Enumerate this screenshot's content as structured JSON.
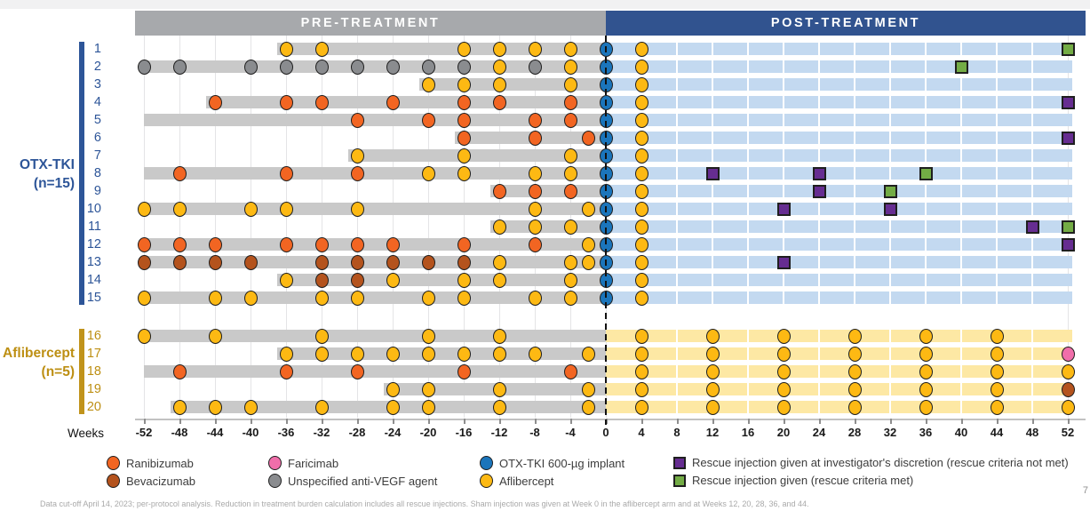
{
  "page_number": "7",
  "footnote": "Data cut-off April 14, 2023; per-protocol analysis. Reduction in treatment burden calculation includes all rescue injections. Sham injection was given at Week 0 in the aflibercept arm and at Weeks 12, 20, 28, 36, and 44.",
  "chart_data": {
    "type": "swimmer_timeline",
    "title_bars": {
      "pre": "PRE-TREATMENT",
      "post": "POST-TREATMENT"
    },
    "axis": {
      "label": "Weeks",
      "min": -52,
      "max": 52,
      "tick_step": 4,
      "ticks": [
        -52,
        -48,
        -44,
        -40,
        -36,
        -32,
        -28,
        -24,
        -20,
        -16,
        -12,
        -8,
        -4,
        0,
        4,
        8,
        12,
        16,
        20,
        24,
        28,
        32,
        36,
        40,
        44,
        48,
        52
      ]
    },
    "groups": [
      {
        "key": "otx",
        "label": "OTX-TKI",
        "n_label": "(n=15)",
        "color": "#2D5598",
        "rows": "1-15"
      },
      {
        "key": "afl",
        "label": "Aflibercept",
        "n_label": "(n=5)",
        "color": "#BD8F13",
        "rows": "16-20"
      }
    ],
    "band_colors": {
      "otx": "#C3D9F0",
      "afl": "#FDE8A4"
    },
    "pre_bar_color": "#C9C9C9",
    "marker_types": {
      "ran": {
        "label": "Ranibizumab",
        "shape": "circle",
        "color": "#F26522"
      },
      "bev": {
        "label": "Bevacizumab",
        "shape": "circle",
        "color": "#B4531D"
      },
      "far": {
        "label": "Faricimab",
        "shape": "circle",
        "color": "#F06EAA"
      },
      "uns": {
        "label": "Unspecified anti-VEGF agent",
        "shape": "circle",
        "color": "#8A8C8F"
      },
      "otx": {
        "label": "OTX-TKI 600-µg implant",
        "shape": "circle",
        "color": "#1B75BB"
      },
      "afl": {
        "label": "Aflibercept",
        "shape": "circle",
        "color": "#FDB913"
      },
      "rnm": {
        "label": "Rescue injection given at investigator's discretion (rescue criteria not met)",
        "shape": "square",
        "color": "#662D91"
      },
      "rm": {
        "label": "Rescue injection given (rescue criteria met)",
        "shape": "square",
        "color": "#73AC45"
      }
    },
    "patients": [
      {
        "id": 1,
        "group": "otx",
        "pre_start": -37,
        "markers": [
          [
            -36,
            "afl"
          ],
          [
            -32,
            "afl"
          ],
          [
            -16,
            "afl"
          ],
          [
            -12,
            "afl"
          ],
          [
            -8,
            "afl"
          ],
          [
            -4,
            "afl"
          ],
          [
            0,
            "otx"
          ],
          [
            4,
            "afl"
          ],
          [
            52,
            "rm"
          ]
        ]
      },
      {
        "id": 2,
        "group": "otx",
        "pre_start": -52,
        "markers": [
          [
            -52,
            "uns"
          ],
          [
            -48,
            "uns"
          ],
          [
            -40,
            "uns"
          ],
          [
            -36,
            "uns"
          ],
          [
            -32,
            "uns"
          ],
          [
            -28,
            "uns"
          ],
          [
            -24,
            "uns"
          ],
          [
            -20,
            "uns"
          ],
          [
            -16,
            "uns"
          ],
          [
            -12,
            "afl"
          ],
          [
            -8,
            "uns"
          ],
          [
            -4,
            "afl"
          ],
          [
            0,
            "otx"
          ],
          [
            4,
            "afl"
          ],
          [
            40,
            "rm"
          ]
        ]
      },
      {
        "id": 3,
        "group": "otx",
        "pre_start": -21,
        "markers": [
          [
            -20,
            "afl"
          ],
          [
            -16,
            "afl"
          ],
          [
            -12,
            "afl"
          ],
          [
            -4,
            "afl"
          ],
          [
            0,
            "otx"
          ],
          [
            4,
            "afl"
          ]
        ]
      },
      {
        "id": 4,
        "group": "otx",
        "pre_start": -45,
        "markers": [
          [
            -44,
            "ran"
          ],
          [
            -36,
            "ran"
          ],
          [
            -32,
            "ran"
          ],
          [
            -24,
            "ran"
          ],
          [
            -16,
            "ran"
          ],
          [
            -12,
            "ran"
          ],
          [
            -4,
            "ran"
          ],
          [
            0,
            "otx"
          ],
          [
            4,
            "afl"
          ],
          [
            52,
            "rnm"
          ]
        ]
      },
      {
        "id": 5,
        "group": "otx",
        "pre_start": -52,
        "markers": [
          [
            -28,
            "ran"
          ],
          [
            -20,
            "ran"
          ],
          [
            -16,
            "ran"
          ],
          [
            -8,
            "ran"
          ],
          [
            -4,
            "ran"
          ],
          [
            0,
            "otx"
          ],
          [
            4,
            "afl"
          ]
        ]
      },
      {
        "id": 6,
        "group": "otx",
        "pre_start": -17,
        "markers": [
          [
            -16,
            "ran"
          ],
          [
            -8,
            "ran"
          ],
          [
            -2,
            "ran"
          ],
          [
            0,
            "otx"
          ],
          [
            4,
            "afl"
          ],
          [
            52,
            "rnm"
          ]
        ]
      },
      {
        "id": 7,
        "group": "otx",
        "pre_start": -29,
        "markers": [
          [
            -28,
            "afl"
          ],
          [
            -16,
            "afl"
          ],
          [
            -4,
            "afl"
          ],
          [
            0,
            "otx"
          ],
          [
            4,
            "afl"
          ]
        ]
      },
      {
        "id": 8,
        "group": "otx",
        "pre_start": -52,
        "markers": [
          [
            -48,
            "ran"
          ],
          [
            -36,
            "ran"
          ],
          [
            -28,
            "ran"
          ],
          [
            -20,
            "afl"
          ],
          [
            -16,
            "afl"
          ],
          [
            -8,
            "afl"
          ],
          [
            -4,
            "afl"
          ],
          [
            0,
            "otx"
          ],
          [
            4,
            "afl"
          ],
          [
            12,
            "rnm"
          ],
          [
            24,
            "rnm"
          ],
          [
            36,
            "rm"
          ]
        ]
      },
      {
        "id": 9,
        "group": "otx",
        "pre_start": -13,
        "markers": [
          [
            -12,
            "ran"
          ],
          [
            -8,
            "ran"
          ],
          [
            -4,
            "ran"
          ],
          [
            0,
            "otx"
          ],
          [
            4,
            "afl"
          ],
          [
            24,
            "rnm"
          ],
          [
            32,
            "rm"
          ]
        ]
      },
      {
        "id": 10,
        "group": "otx",
        "pre_start": -52,
        "markers": [
          [
            -52,
            "afl"
          ],
          [
            -48,
            "afl"
          ],
          [
            -40,
            "afl"
          ],
          [
            -36,
            "afl"
          ],
          [
            -28,
            "afl"
          ],
          [
            -8,
            "afl"
          ],
          [
            -2,
            "afl"
          ],
          [
            0,
            "otx"
          ],
          [
            4,
            "afl"
          ],
          [
            20,
            "rnm"
          ],
          [
            32,
            "rnm"
          ]
        ]
      },
      {
        "id": 11,
        "group": "otx",
        "pre_start": -13,
        "markers": [
          [
            -12,
            "afl"
          ],
          [
            -8,
            "afl"
          ],
          [
            -4,
            "afl"
          ],
          [
            0,
            "otx"
          ],
          [
            4,
            "afl"
          ],
          [
            48,
            "rnm"
          ],
          [
            52,
            "rm"
          ]
        ]
      },
      {
        "id": 12,
        "group": "otx",
        "pre_start": -52,
        "markers": [
          [
            -52,
            "ran"
          ],
          [
            -48,
            "ran"
          ],
          [
            -44,
            "ran"
          ],
          [
            -36,
            "ran"
          ],
          [
            -32,
            "ran"
          ],
          [
            -28,
            "ran"
          ],
          [
            -24,
            "ran"
          ],
          [
            -16,
            "ran"
          ],
          [
            -8,
            "ran"
          ],
          [
            -2,
            "afl"
          ],
          [
            0,
            "otx"
          ],
          [
            4,
            "afl"
          ],
          [
            52,
            "rnm"
          ]
        ]
      },
      {
        "id": 13,
        "group": "otx",
        "pre_start": -52,
        "markers": [
          [
            -52,
            "bev"
          ],
          [
            -48,
            "bev"
          ],
          [
            -44,
            "bev"
          ],
          [
            -40,
            "bev"
          ],
          [
            -32,
            "bev"
          ],
          [
            -28,
            "bev"
          ],
          [
            -24,
            "bev"
          ],
          [
            -20,
            "bev"
          ],
          [
            -16,
            "bev"
          ],
          [
            -12,
            "afl"
          ],
          [
            -4,
            "afl"
          ],
          [
            -2,
            "afl"
          ],
          [
            0,
            "otx"
          ],
          [
            4,
            "afl"
          ],
          [
            20,
            "rnm"
          ]
        ]
      },
      {
        "id": 14,
        "group": "otx",
        "pre_start": -37,
        "markers": [
          [
            -36,
            "afl"
          ],
          [
            -32,
            "bev"
          ],
          [
            -28,
            "bev"
          ],
          [
            -24,
            "afl"
          ],
          [
            -16,
            "afl"
          ],
          [
            -12,
            "afl"
          ],
          [
            -4,
            "afl"
          ],
          [
            0,
            "otx"
          ],
          [
            4,
            "afl"
          ]
        ]
      },
      {
        "id": 15,
        "group": "otx",
        "pre_start": -52,
        "markers": [
          [
            -52,
            "afl"
          ],
          [
            -44,
            "afl"
          ],
          [
            -40,
            "afl"
          ],
          [
            -32,
            "afl"
          ],
          [
            -28,
            "afl"
          ],
          [
            -20,
            "afl"
          ],
          [
            -16,
            "afl"
          ],
          [
            -8,
            "afl"
          ],
          [
            -4,
            "afl"
          ],
          [
            0,
            "otx"
          ],
          [
            4,
            "afl"
          ]
        ]
      },
      {
        "id": 16,
        "group": "afl",
        "pre_start": -52,
        "markers": [
          [
            -52,
            "afl"
          ],
          [
            -44,
            "afl"
          ],
          [
            -32,
            "afl"
          ],
          [
            -20,
            "afl"
          ],
          [
            -12,
            "afl"
          ],
          [
            4,
            "afl"
          ],
          [
            12,
            "afl"
          ],
          [
            20,
            "afl"
          ],
          [
            28,
            "afl"
          ],
          [
            36,
            "afl"
          ],
          [
            44,
            "afl"
          ]
        ]
      },
      {
        "id": 17,
        "group": "afl",
        "pre_start": -37,
        "markers": [
          [
            -36,
            "afl"
          ],
          [
            -32,
            "afl"
          ],
          [
            -28,
            "afl"
          ],
          [
            -24,
            "afl"
          ],
          [
            -20,
            "afl"
          ],
          [
            -16,
            "afl"
          ],
          [
            -12,
            "afl"
          ],
          [
            -8,
            "afl"
          ],
          [
            -2,
            "afl"
          ],
          [
            4,
            "afl"
          ],
          [
            12,
            "afl"
          ],
          [
            20,
            "afl"
          ],
          [
            28,
            "afl"
          ],
          [
            36,
            "afl"
          ],
          [
            44,
            "afl"
          ],
          [
            52,
            "far"
          ]
        ]
      },
      {
        "id": 18,
        "group": "afl",
        "pre_start": -52,
        "markers": [
          [
            -48,
            "ran"
          ],
          [
            -36,
            "ran"
          ],
          [
            -28,
            "ran"
          ],
          [
            -16,
            "ran"
          ],
          [
            -4,
            "ran"
          ],
          [
            4,
            "afl"
          ],
          [
            12,
            "afl"
          ],
          [
            20,
            "afl"
          ],
          [
            28,
            "afl"
          ],
          [
            36,
            "afl"
          ],
          [
            44,
            "afl"
          ],
          [
            52,
            "afl"
          ]
        ]
      },
      {
        "id": 19,
        "group": "afl",
        "pre_start": -25,
        "markers": [
          [
            -24,
            "afl"
          ],
          [
            -20,
            "afl"
          ],
          [
            -12,
            "afl"
          ],
          [
            -2,
            "afl"
          ],
          [
            4,
            "afl"
          ],
          [
            12,
            "afl"
          ],
          [
            20,
            "afl"
          ],
          [
            28,
            "afl"
          ],
          [
            36,
            "afl"
          ],
          [
            44,
            "afl"
          ],
          [
            52,
            "bev"
          ]
        ]
      },
      {
        "id": 20,
        "group": "afl",
        "pre_start": -49,
        "markers": [
          [
            -48,
            "afl"
          ],
          [
            -44,
            "afl"
          ],
          [
            -40,
            "afl"
          ],
          [
            -32,
            "afl"
          ],
          [
            -24,
            "afl"
          ],
          [
            -20,
            "afl"
          ],
          [
            -12,
            "afl"
          ],
          [
            -2,
            "afl"
          ],
          [
            4,
            "afl"
          ],
          [
            12,
            "afl"
          ],
          [
            20,
            "afl"
          ],
          [
            28,
            "afl"
          ],
          [
            36,
            "afl"
          ],
          [
            44,
            "afl"
          ],
          [
            52,
            "afl"
          ]
        ]
      }
    ]
  }
}
